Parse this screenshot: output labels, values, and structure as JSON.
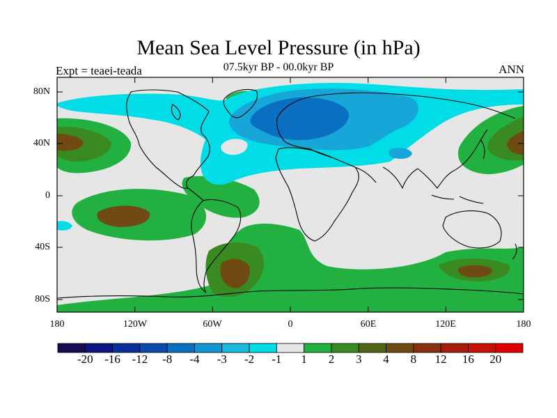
{
  "title": "Mean Sea Level Pressure (in hPa)",
  "subtitle": "07.5kyr BP - 00.0kyr BP",
  "expt_label": "Expt = teaei-teada",
  "period": "ANN",
  "lat_labels": [
    "80N",
    "40N",
    "0",
    "40S",
    "80S"
  ],
  "lon_labels": [
    "180",
    "120W",
    "60W",
    "0",
    "60E",
    "120E",
    "180"
  ],
  "colorbar": {
    "labels": [
      "-20",
      "-16",
      "-12",
      "-8",
      "-4",
      "-3",
      "-2",
      "-1",
      "1",
      "2",
      "3",
      "4",
      "8",
      "12",
      "16",
      "20"
    ],
    "colors": [
      "#1a0a52",
      "#0d1680",
      "#0a2e9a",
      "#0a4aab",
      "#0a6fc0",
      "#1096d0",
      "#1cb8dd",
      "#00dde6",
      "#e6e6e6",
      "#22b040",
      "#3a8a22",
      "#506616",
      "#6f4a12",
      "#8a3010",
      "#a81c0c",
      "#c81008",
      "#e00000"
    ]
  },
  "colors": {
    "neutral": "#e6e6e6",
    "cyan": "#00dde6",
    "medblue": "#16a6d8",
    "darkblue": "#0a6fc0",
    "green": "#22b040",
    "olive": "#3a8a22",
    "brown": "#6f4a12",
    "coast": "#000000"
  }
}
